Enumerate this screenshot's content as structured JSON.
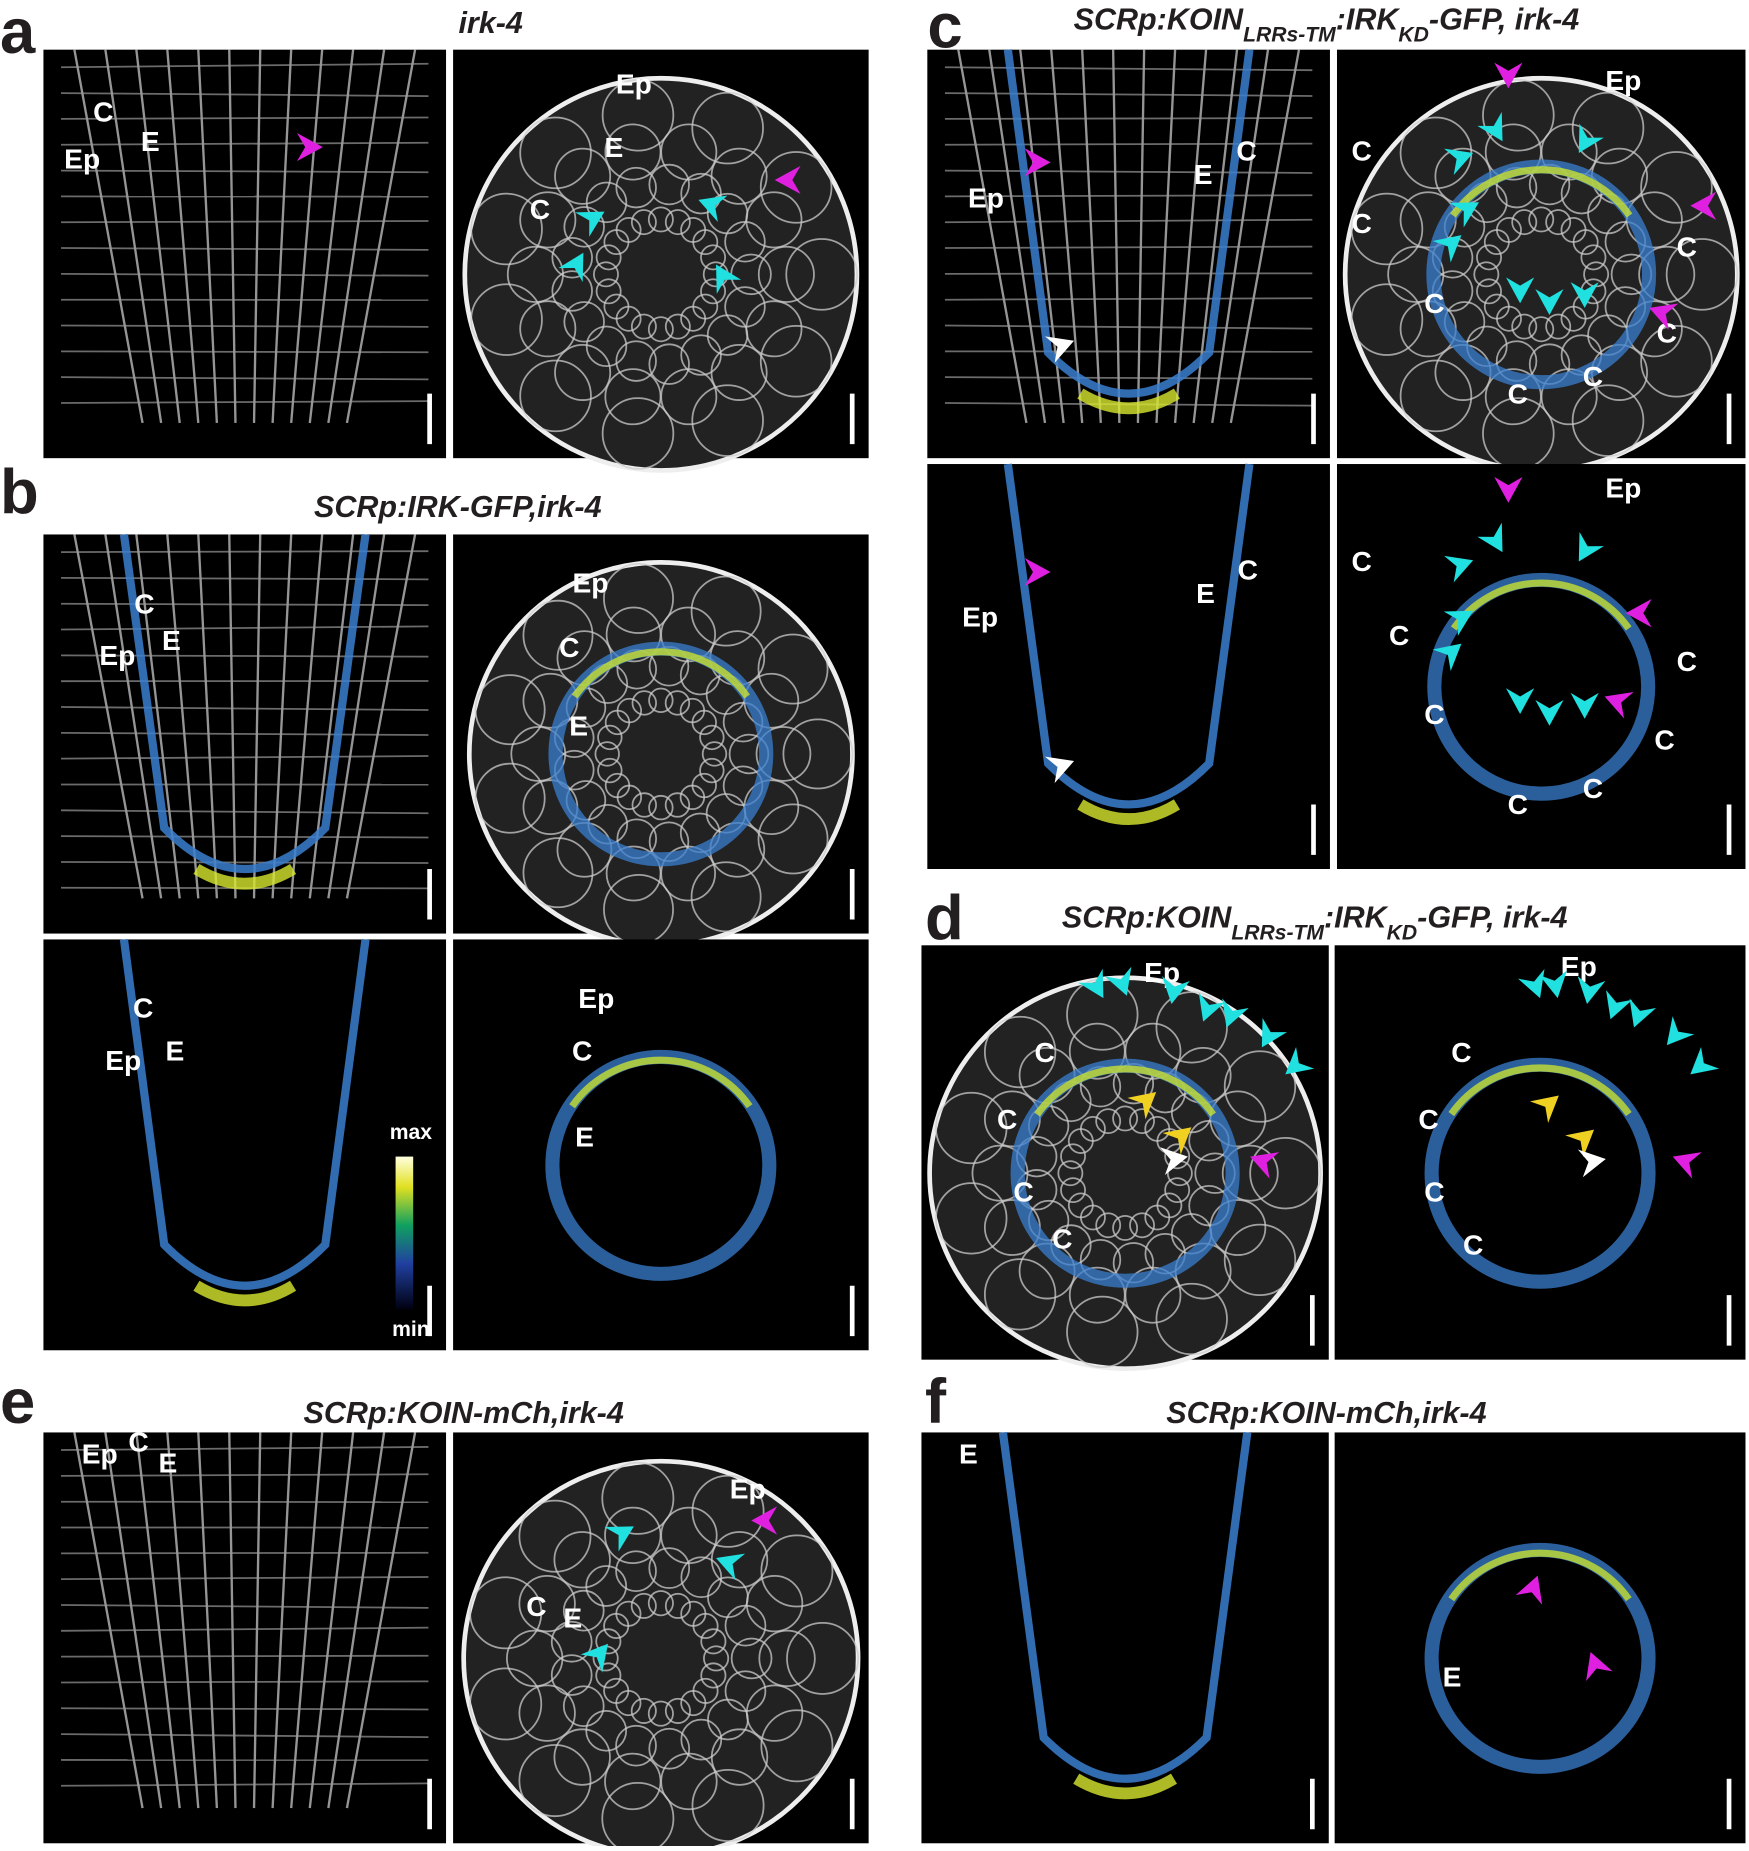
{
  "panels": [
    {
      "letter": "a",
      "title": [
        {
          "text": "irk-4"
        }
      ],
      "images": [
        {
          "labels": [
            "C",
            "Ep",
            "E"
          ]
        },
        {
          "labels": [
            "Ep",
            "E",
            "C"
          ]
        }
      ]
    },
    {
      "letter": "b",
      "title": [
        {
          "text": "SCRp:IRK-GFP,irk-4"
        }
      ],
      "images": [
        {
          "labels": [
            "C",
            "Ep",
            "E"
          ]
        },
        {
          "labels": [
            "Ep",
            "C",
            "E"
          ]
        },
        {
          "labels": [
            "C",
            "Ep",
            "E"
          ]
        },
        {
          "labels": [
            "Ep",
            "C",
            "E"
          ]
        }
      ]
    },
    {
      "letter": "c",
      "title": [
        {
          "text": "SCRp:KOIN"
        },
        {
          "text": "LRRs-TM",
          "sub": true
        },
        {
          "text": ":IRK"
        },
        {
          "text": "KD",
          "sub": true
        },
        {
          "text": "-GFP, irk-4"
        }
      ],
      "images": [
        {
          "labels": [
            "C",
            "E",
            "Ep"
          ]
        },
        {
          "labels": [
            "Ep",
            "C",
            "C",
            "C",
            "C",
            "C",
            "C",
            "C"
          ]
        },
        {
          "labels": [
            "C",
            "E",
            "Ep"
          ]
        },
        {
          "labels": [
            "Ep",
            "C",
            "C",
            "C",
            "C",
            "C",
            "C",
            "C"
          ]
        }
      ]
    },
    {
      "letter": "d",
      "title": [
        {
          "text": "SCRp:KOIN"
        },
        {
          "text": "LRRs-TM",
          "sub": true
        },
        {
          "text": ":IRK"
        },
        {
          "text": "KD",
          "sub": true
        },
        {
          "text": "-GFP, irk-4"
        }
      ],
      "images": [
        {
          "labels": [
            "Ep",
            "C",
            "C",
            "C",
            "C"
          ]
        },
        {
          "labels": [
            "Ep",
            "C",
            "C",
            "C",
            "C"
          ]
        }
      ]
    },
    {
      "letter": "e",
      "title": [
        {
          "text": "SCRp:KOIN-mCh,irk-4"
        }
      ],
      "images": [
        {
          "labels": [
            "Ep",
            "C",
            "E"
          ]
        },
        {
          "labels": [
            "Ep",
            "C",
            "E"
          ]
        }
      ]
    },
    {
      "letter": "f",
      "title": [
        {
          "text": "SCRp:KOIN-mCh,irk-4"
        }
      ],
      "images": [
        {
          "labels": [
            "E"
          ]
        },
        {
          "labels": [
            "E"
          ]
        }
      ]
    }
  ],
  "colorbar": {
    "max": "max",
    "min": "min"
  }
}
